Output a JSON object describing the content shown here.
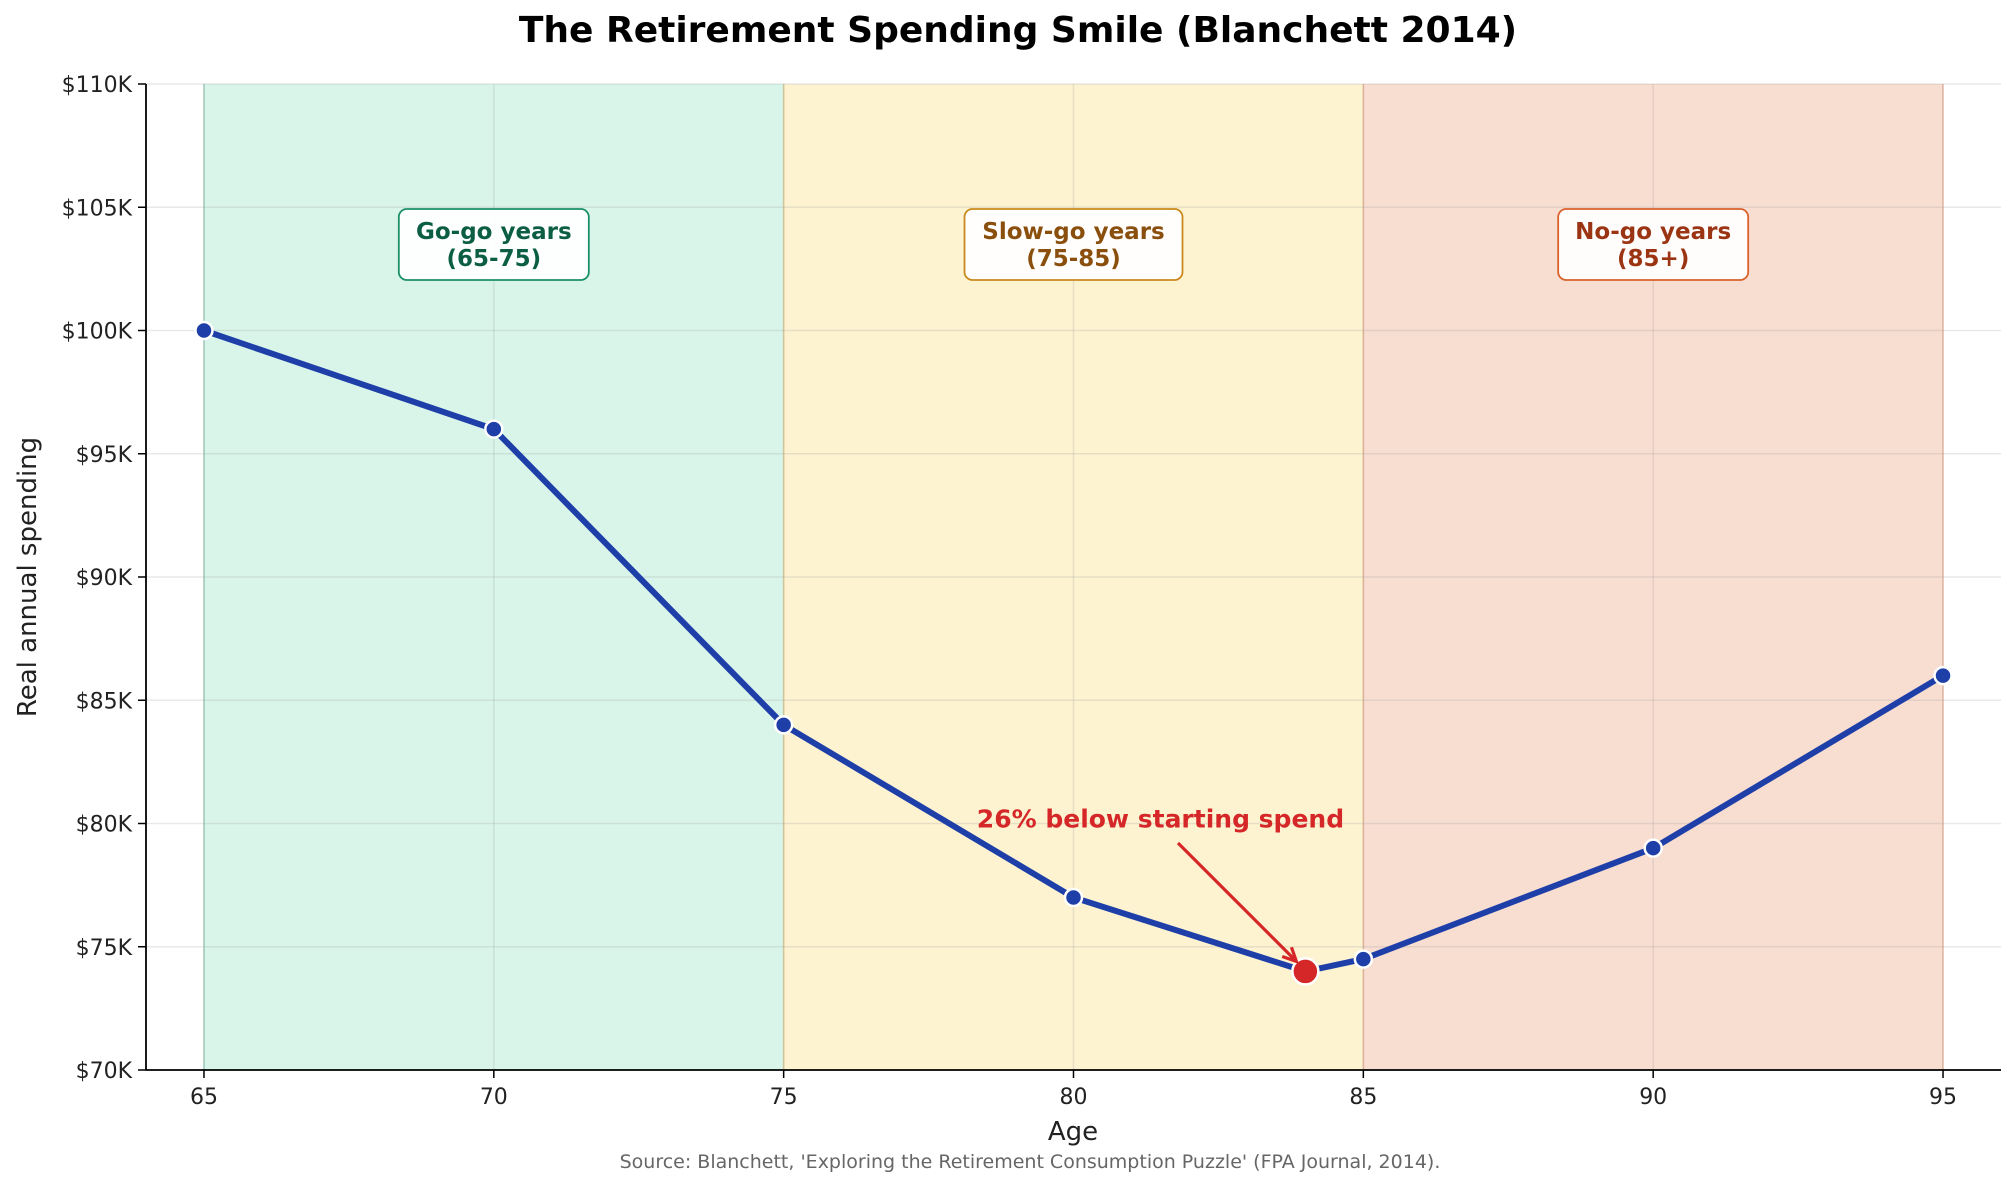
{
  "chart_data": {
    "type": "line",
    "title": "The Retirement Spending Smile (Blanchett 2014)",
    "xlabel": "Age",
    "ylabel": "Real annual spending",
    "xlim": [
      64,
      96
    ],
    "ylim": [
      70000,
      110000
    ],
    "x_ticks": [
      65,
      70,
      75,
      80,
      85,
      90,
      95
    ],
    "y_ticks": [
      70000,
      75000,
      80000,
      85000,
      90000,
      95000,
      100000,
      105000,
      110000
    ],
    "y_tick_labels": [
      "$70K",
      "$75K",
      "$80K",
      "$85K",
      "$90K",
      "$95K",
      "$100K",
      "$105K",
      "$110K"
    ],
    "grid": true,
    "series": [
      {
        "color": "#1f3fa8",
        "x": [
          65,
          70,
          75,
          80,
          84,
          85,
          90,
          95
        ],
        "values": [
          100000,
          96000,
          84000,
          77000,
          74000,
          74500,
          79000,
          86000
        ]
      }
    ],
    "phases": [
      {
        "label_line1": "Go-go years",
        "label_line2": "(65-75)",
        "x_range": [
          65,
          75
        ],
        "fill": "#d9f5ea",
        "text_color": "#0b5e43",
        "border": "#1a9068"
      },
      {
        "label_line1": "Slow-go years",
        "label_line2": "(75-85)",
        "x_range": [
          75,
          85
        ],
        "fill": "#fdf3d1",
        "text_color": "#8a4f0c",
        "border": "#c98a1b"
      },
      {
        "label_line1": "No-go years",
        "label_line2": "(85+)",
        "x_range": [
          85,
          95
        ],
        "fill": "#f8ddd1",
        "text_color": "#9a3412",
        "border": "#d9622b"
      }
    ],
    "highlight": {
      "x": 84,
      "y": 74000,
      "color": "#d62728",
      "text": "26% below starting spend",
      "text_x": 81.5,
      "text_y": 80200
    }
  },
  "source": "Source: Blanchett, 'Exploring the Retirement Consumption Puzzle' (FPA Journal, 2014)."
}
